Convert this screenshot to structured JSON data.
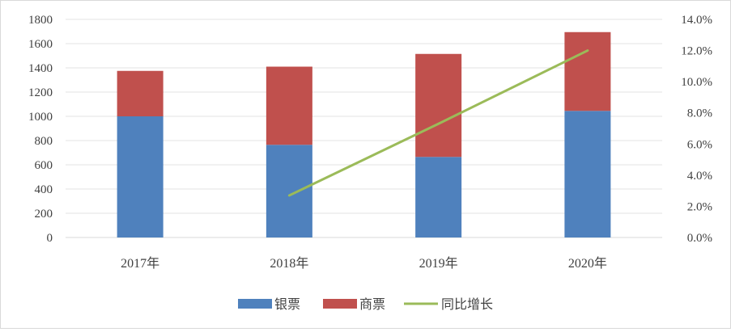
{
  "chart_data": {
    "type": "bar",
    "stacked": true,
    "categories": [
      "2017年",
      "2018年",
      "2019年",
      "2020年"
    ],
    "series": [
      {
        "name": "银票",
        "type": "bar",
        "axis": "left",
        "color": "#4f81bd",
        "values": [
          1000,
          765,
          665,
          1045
        ]
      },
      {
        "name": "商票",
        "type": "bar",
        "axis": "left",
        "color": "#c0504d",
        "values": [
          375,
          645,
          850,
          650
        ]
      },
      {
        "name": "同比增长",
        "type": "line",
        "axis": "right",
        "color": "#9bbb59",
        "values": [
          null,
          0.027,
          0.073,
          0.12
        ]
      }
    ],
    "left_axis": {
      "ylim": [
        0,
        1800
      ],
      "ticks": [
        "0",
        "200",
        "400",
        "600",
        "800",
        "1000",
        "1200",
        "1400",
        "1600",
        "1800"
      ]
    },
    "right_axis": {
      "ylim": [
        0,
        0.14
      ],
      "ticks": [
        "0.0%",
        "2.0%",
        "4.0%",
        "6.0%",
        "8.0%",
        "10.0%",
        "12.0%",
        "14.0%"
      ]
    },
    "grid": true,
    "legend_position": "bottom",
    "title": "",
    "xlabel": "",
    "ylabel": ""
  }
}
